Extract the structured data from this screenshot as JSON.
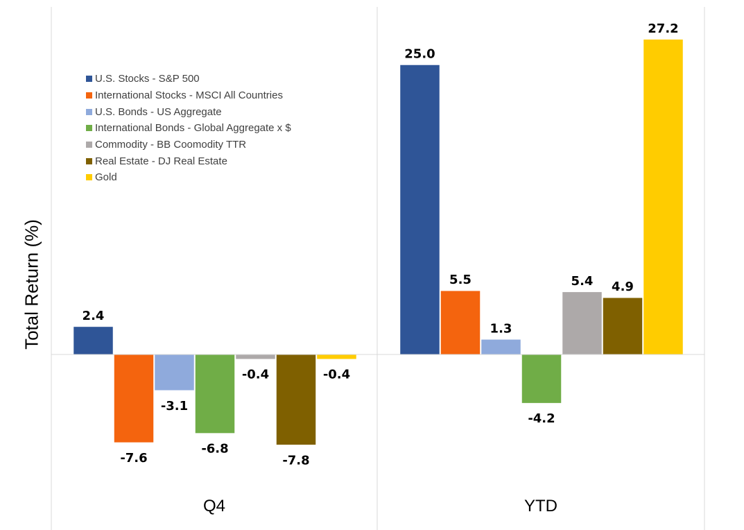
{
  "chart_data": {
    "type": "bar",
    "title": "",
    "xlabel": "",
    "ylabel": "Total Return (%)",
    "ylim": [
      -14,
      28
    ],
    "grid": false,
    "legend_position": "top-left",
    "categories": [
      "Q4",
      "YTD"
    ],
    "series": [
      {
        "name": "U.S. Stocks -  S&P 500",
        "color": "#2F5597",
        "values": [
          2.4,
          25.0
        ],
        "labels": [
          "2.4",
          "25.0"
        ]
      },
      {
        "name": "International Stocks - MSCI All Countries",
        "color": "#F4640E",
        "values": [
          -7.6,
          5.5
        ],
        "labels": [
          "-7.6",
          "5.5"
        ]
      },
      {
        "name": "U.S. Bonds - US Aggregate",
        "color": "#8FAADC",
        "values": [
          -3.1,
          1.3
        ],
        "labels": [
          "-3.1",
          "1.3"
        ]
      },
      {
        "name": "International Bonds - Global Aggregate x $",
        "color": "#70AD47",
        "values": [
          -6.8,
          -4.2
        ],
        "labels": [
          "-6.8",
          "-4.2"
        ]
      },
      {
        "name": "Commodity - BB Coomodity TTR",
        "color": "#ADA9A9",
        "values": [
          -0.4,
          5.4
        ],
        "labels": [
          "-0.4",
          "5.4"
        ]
      },
      {
        "name": "Real Estate - DJ Real Estate",
        "color": "#7F6000",
        "values": [
          -7.8,
          4.9
        ],
        "labels": [
          "-7.8",
          "4.9"
        ]
      },
      {
        "name": "Gold",
        "color": "#FFCC00",
        "values": [
          -0.4,
          27.2
        ],
        "labels": [
          "-0.4",
          "27.2"
        ]
      }
    ]
  }
}
